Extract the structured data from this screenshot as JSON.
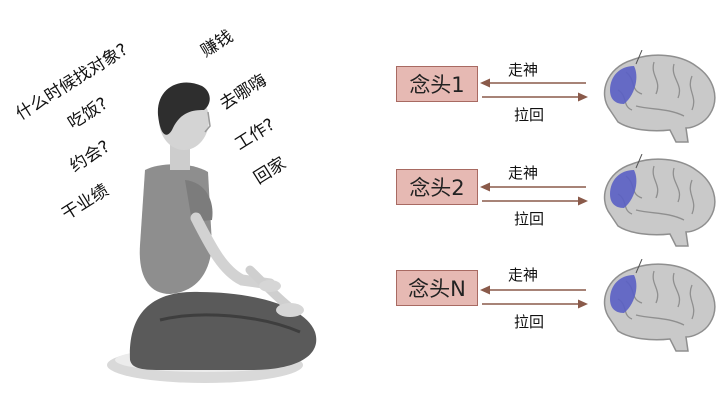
{
  "thoughts": [
    "什么时候找对象?",
    "吃饭?",
    "约会?",
    "干业绩",
    "赚钱",
    "去哪嗨",
    "工作?",
    "回家"
  ],
  "rows": [
    {
      "box": "念头1",
      "top_label": "走神",
      "bottom_label": "拉回"
    },
    {
      "box": "念头2",
      "top_label": "走神",
      "bottom_label": "拉回"
    },
    {
      "box": "念头N",
      "top_label": "走神",
      "bottom_label": "拉回"
    }
  ],
  "colors": {
    "box_fill": "#e6b9b3",
    "box_border": "#a86a62",
    "arrow": "#8a5a4a",
    "brain": "#c9c9c9",
    "brain_region": "#5a5fc4"
  },
  "icons": {
    "figure": "meditating-person-icon",
    "brain": "brain-icon"
  }
}
